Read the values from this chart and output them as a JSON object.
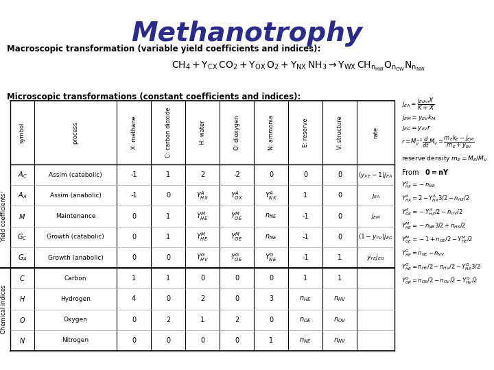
{
  "title": "Methanotrophy",
  "title_color": "#2B2B8B",
  "subtitle": "Macroscopic transformation (variable yield coefficients and indices):",
  "micro_title": "Microscopic transformations (constant coefficients and indices):",
  "bg_color": "#FFFFFF",
  "figsize": [
    7.2,
    5.4
  ],
  "dpi": 100
}
